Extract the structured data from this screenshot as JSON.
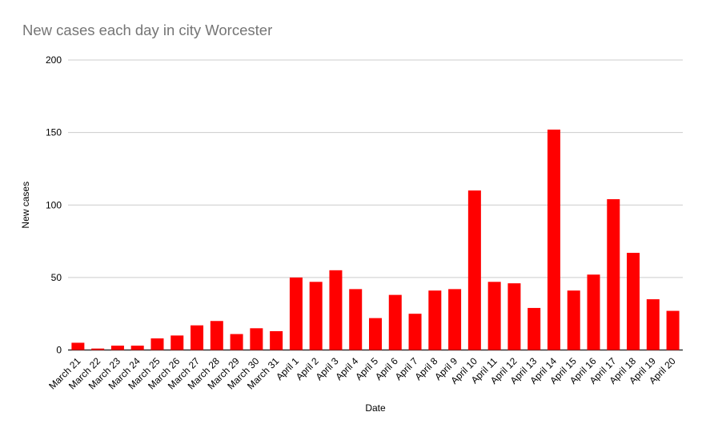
{
  "page": {
    "background_color": "#ffffff"
  },
  "chart_data": {
    "type": "bar",
    "title": "New cases each day in city Worcester",
    "xlabel": "Date",
    "ylabel": "New cases",
    "categories": [
      "March 21",
      "March 22",
      "March 23",
      "March 24",
      "March 25",
      "March 26",
      "March 27",
      "March 28",
      "March 29",
      "March 30",
      "March 31",
      "April 1",
      "April 2",
      "April 3",
      "April 4",
      "April 5",
      "April 6",
      "April 7",
      "April 8",
      "April 9",
      "April 10",
      "April 11",
      "April 12",
      "April 13",
      "April 14",
      "April 15",
      "April 16",
      "April 17",
      "April 18",
      "April 19",
      "April 20"
    ],
    "values": [
      5,
      1,
      3,
      3,
      8,
      10,
      17,
      20,
      11,
      15,
      13,
      50,
      47,
      55,
      42,
      22,
      38,
      25,
      41,
      42,
      110,
      47,
      46,
      29,
      152,
      41,
      52,
      104,
      67,
      35,
      27
    ],
    "ylim": [
      0,
      200
    ],
    "yticks": [
      0,
      50,
      100,
      150,
      200
    ],
    "grid": true,
    "legend_position": "none",
    "colors": {
      "bar": "#ff0000",
      "title_text": "#757575",
      "axis_text": "#000000",
      "gridline": "#cccccc",
      "axis_line": "#333333"
    }
  }
}
